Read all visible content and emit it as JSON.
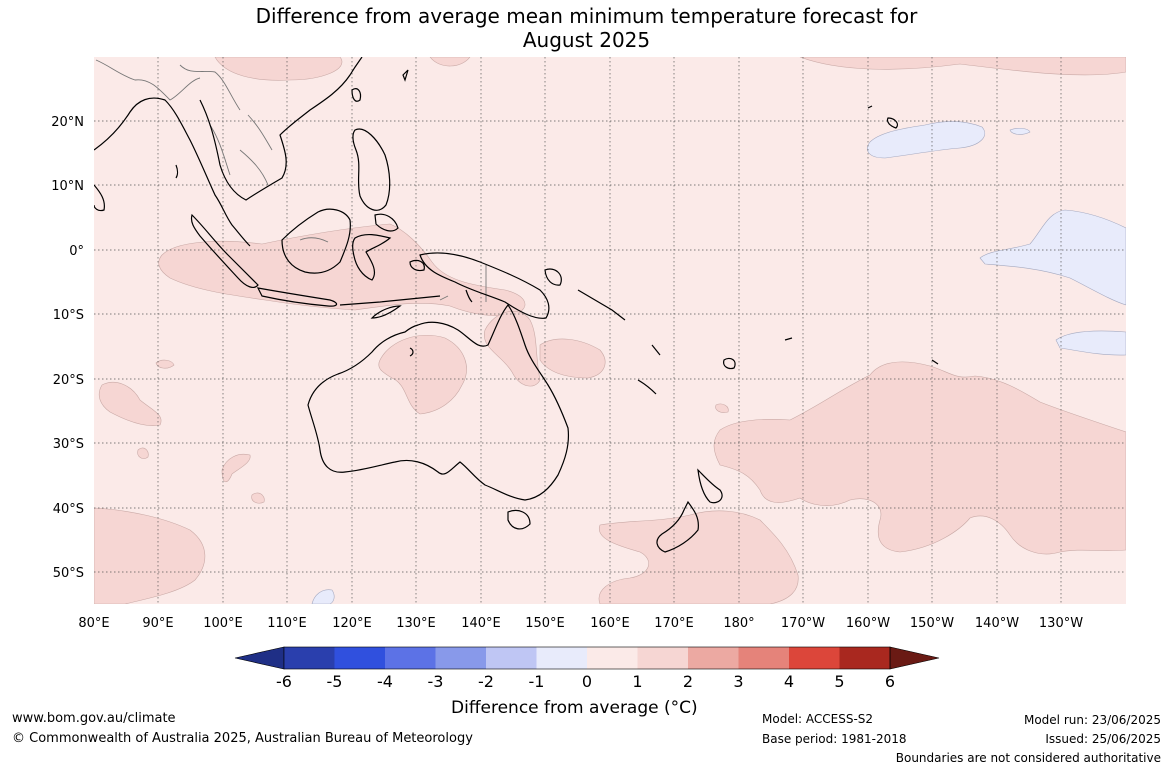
{
  "title": {
    "line1": "Difference from average mean minimum temperature forecast for",
    "line2": "August 2025"
  },
  "map": {
    "lat_labels": [
      "20°N",
      "10°N",
      "0°",
      "10°S",
      "20°S",
      "30°S",
      "40°S",
      "50°S"
    ],
    "lon_labels": [
      "80°E",
      "90°E",
      "100°E",
      "110°E",
      "120°E",
      "130°E",
      "140°E",
      "150°E",
      "160°E",
      "170°E",
      "180°",
      "170°W",
      "160°W",
      "150°W",
      "140°W",
      "130°W"
    ],
    "colors": {
      "ocean_base": "#fbeae8",
      "warm_1_2": "#f6d6d3",
      "cool_0_-1": "#e8ebfb",
      "coast": "#000000",
      "border": "#777777"
    }
  },
  "colorbar": {
    "ticks": [
      "-6",
      "-5",
      "-4",
      "-3",
      "-2",
      "-1",
      "0",
      "1",
      "2",
      "3",
      "4",
      "5",
      "6"
    ],
    "colors": [
      "#1f2f86",
      "#2a3fad",
      "#3050de",
      "#5c72e6",
      "#8899ea",
      "#bfc6f4",
      "#e8ebfb",
      "#fbeae8",
      "#f6d6d3",
      "#eca9a2",
      "#e5837a",
      "#dc463a",
      "#a9281f",
      "#6a1a14"
    ],
    "label": "Difference from average (°C)"
  },
  "footer": {
    "website": "www.bom.gov.au/climate",
    "copyright": "© Commonwealth of Australia 2025, Australian Bureau of Meteorology",
    "model": "Model: ACCESS-S2",
    "base_period": "Base period: 1981-2018",
    "model_run": "Model run: 23/06/2025",
    "issued": "Issued: 25/06/2025",
    "disclaimer": "Boundaries are not considered authoritative"
  }
}
